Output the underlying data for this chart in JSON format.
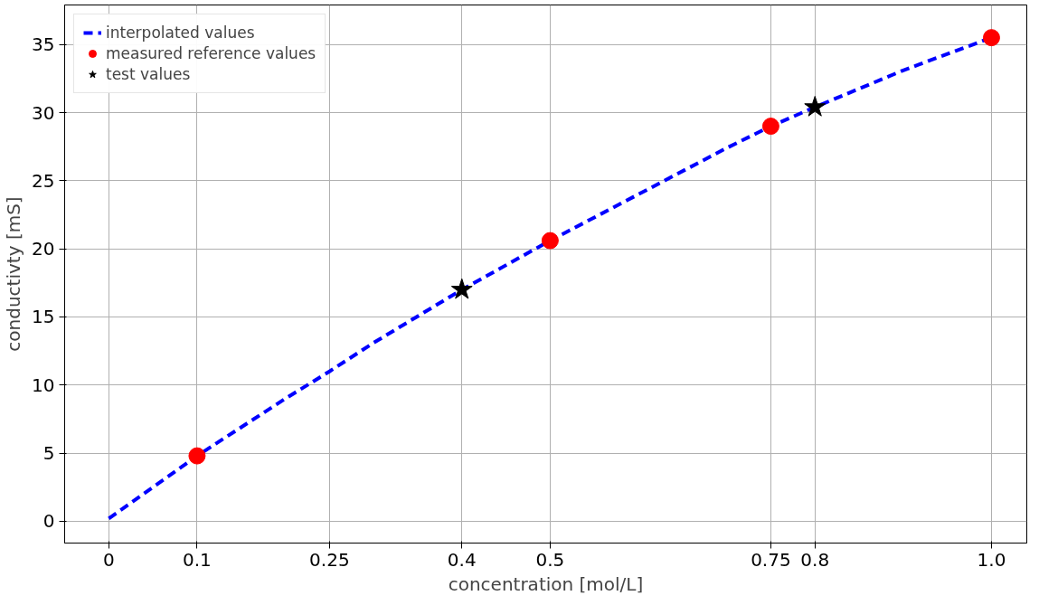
{
  "chart_data": {
    "type": "line",
    "xlabel": "concentration [mol/L]",
    "ylabel": "conductivty [mS]",
    "xlim": [
      -0.05,
      1.04
    ],
    "ylim": [
      -1.6,
      37.9
    ],
    "xticks": [
      0,
      0.1,
      0.25,
      0.4,
      0.5,
      0.75,
      0.8,
      {
        "value": 1.0,
        "label": "1.0"
      }
    ],
    "yticks": [
      0,
      5,
      10,
      15,
      20,
      25,
      30,
      35
    ],
    "grid": true,
    "legend": "top left",
    "series": [
      {
        "name": "interpolated values",
        "line_style": "dashed",
        "color": "#0000ff",
        "x": [
          0,
          0.1,
          0.2,
          0.25,
          0.3,
          0.4,
          0.5,
          0.6,
          0.7,
          0.75,
          0.8,
          0.9,
          1.0
        ],
        "values": [
          0.2,
          4.8,
          9.0,
          11.0,
          13.1,
          17.0,
          20.6,
          24.0,
          27.4,
          29.0,
          30.4,
          33.1,
          35.5
        ]
      },
      {
        "name": "measured reference values",
        "type": "scatter",
        "marker": "circle",
        "color": "#ff0000",
        "x": [
          0.1,
          0.5,
          0.75,
          1.0
        ],
        "values": [
          4.8,
          20.6,
          29.0,
          35.5
        ]
      },
      {
        "name": "test values",
        "type": "scatter",
        "marker": "star",
        "color": "#000000",
        "x": [
          0.4,
          0.8
        ],
        "values": [
          17.0,
          30.4
        ]
      }
    ]
  }
}
